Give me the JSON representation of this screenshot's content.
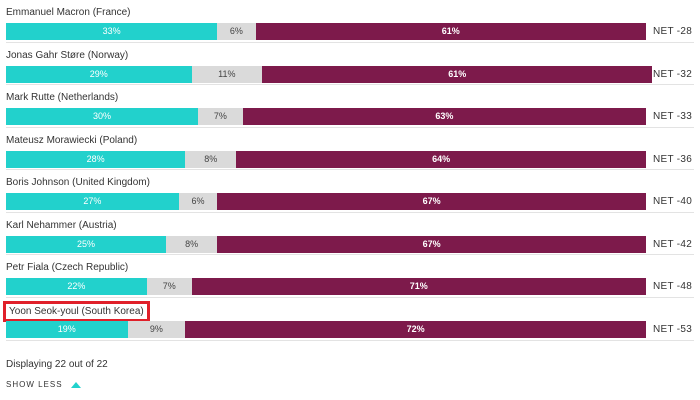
{
  "chart_data": {
    "type": "bar",
    "stacked": true,
    "orientation": "horizontal",
    "xlim": [
      0,
      100
    ],
    "highlighted_category": "Yoon Seok-youl (South Korea)",
    "categories": [
      "Emmanuel Macron (France)",
      "Jonas Gahr Støre (Norway)",
      "Mark Rutte (Netherlands)",
      "Mateusz Morawiecki (Poland)",
      "Boris Johnson (United Kingdom)",
      "Karl Nehammer (Austria)",
      "Petr Fiala (Czech Republic)",
      "Yoon Seok-youl (South Korea)"
    ],
    "series": [
      {
        "values": [
          33,
          29,
          30,
          28,
          27,
          25,
          22,
          19
        ],
        "color": "#22d1cc"
      },
      {
        "values": [
          6,
          11,
          7,
          8,
          6,
          8,
          7,
          9
        ],
        "color": "#dadada"
      },
      {
        "values": [
          61,
          61,
          63,
          64,
          67,
          67,
          71,
          72
        ],
        "color": "#7d1a4b"
      }
    ],
    "net_labels": [
      "NET -28",
      "NET -32",
      "NET -33",
      "NET -36",
      "NET -40",
      "NET -42",
      "NET -48",
      "NET -53"
    ]
  },
  "footer": {
    "displaying": "Displaying 22 out of 22",
    "show_less": "SHOW LESS",
    "show_less_icon": "caret-up-icon"
  },
  "colors": {
    "highlight_border": "#e0202a"
  }
}
